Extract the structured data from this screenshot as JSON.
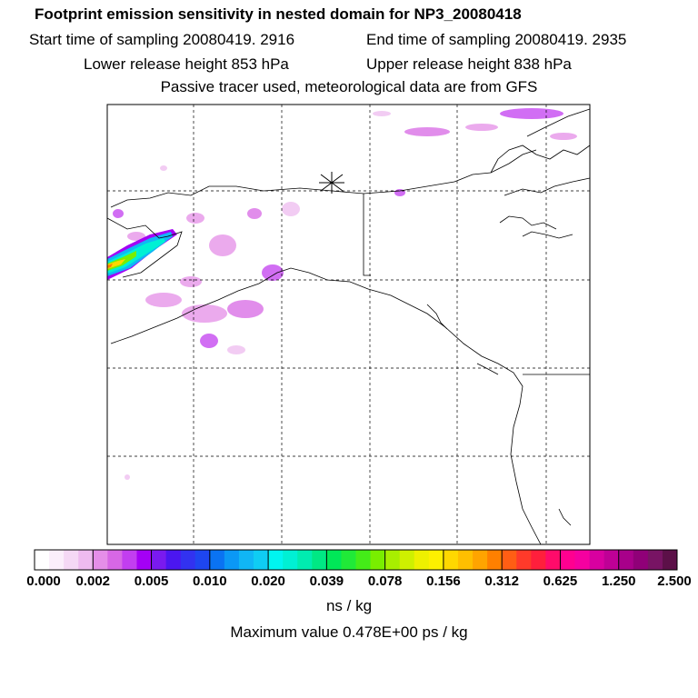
{
  "header": {
    "title": "Footprint emission sensitivity in nested domain for NP3_20080418",
    "start": "Start time of sampling 20080419.  2916",
    "end": "End time of sampling 20080419.  2935",
    "lower": "Lower release height  853 hPa",
    "upper": "Upper release height  838 hPa",
    "note": "Passive tracer used, meteorological data are from GFS"
  },
  "colorbar": {
    "colors": [
      "#ffffff",
      "#fbeefb",
      "#f5d8f5",
      "#eebbef",
      "#e58ee8",
      "#d767e5",
      "#c23ef0",
      "#a400f5",
      "#7a1aef",
      "#4b16f0",
      "#3232f0",
      "#1e46f0",
      "#0a73f2",
      "#0b98f5",
      "#10b6f5",
      "#0fcdf3",
      "#00f5f0",
      "#00f0d4",
      "#00ecb0",
      "#00e884",
      "#00e858",
      "#20ea38",
      "#44ec18",
      "#79ee00",
      "#a8ee00",
      "#cef000",
      "#eef000",
      "#fdf000",
      "#ffd800",
      "#ffbf00",
      "#ffa400",
      "#ff8000",
      "#ff5e14",
      "#ff3a2a",
      "#ff1f3c",
      "#ff0b6a",
      "#ff0090",
      "#f500a0",
      "#d800a0",
      "#bf0096",
      "#a8008a",
      "#900078",
      "#781464",
      "#5c1048"
    ],
    "labels": [
      "0.000",
      "0.002",
      "0.005",
      "0.010",
      "0.020",
      "0.039",
      "0.078",
      "0.156",
      "0.312",
      "0.625",
      "1.250",
      "2.500"
    ]
  },
  "units": "ns / kg",
  "max_value": "Maximum value  0.478E+00 ps / kg",
  "colors": {
    "plume_core": "#ffd800",
    "plume_edge": "#00f0d4",
    "light_spots": "#e58ee8"
  }
}
